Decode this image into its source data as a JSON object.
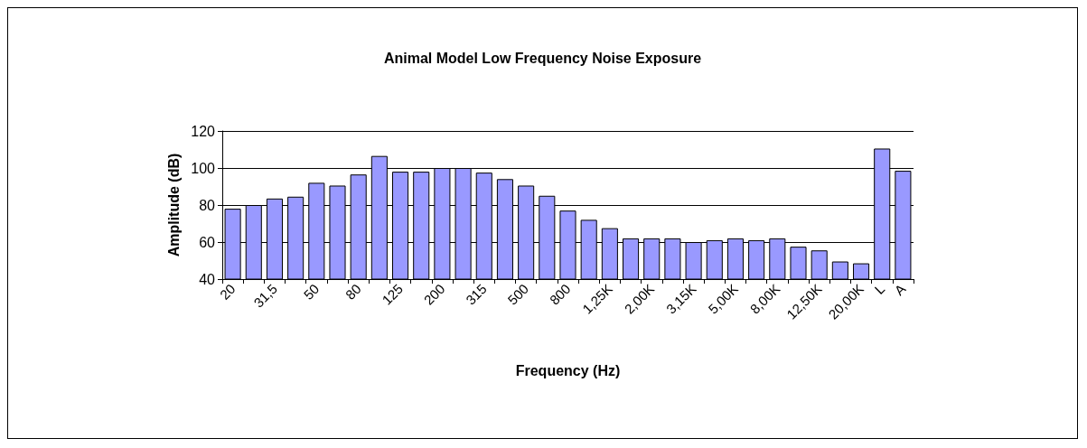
{
  "chart_data": {
    "type": "bar",
    "title": "Animal Model Low Frequency Noise Exposure",
    "xlabel": "Frequency (Hz)",
    "ylabel": "Amplitude (dB)",
    "categories": [
      "20",
      null,
      "31,5",
      null,
      "50",
      null,
      "80",
      null,
      "125",
      null,
      "200",
      null,
      "315",
      null,
      "500",
      null,
      "800",
      null,
      "1,25K",
      null,
      "2,00K",
      null,
      "3,15K",
      null,
      "5,00K",
      null,
      "8,00K",
      null,
      "12,50K",
      null,
      "20,00K",
      "L",
      "A"
    ],
    "values": [
      78,
      80,
      83.5,
      84.5,
      92,
      90.5,
      96.5,
      106.5,
      98,
      98,
      100,
      100,
      97.5,
      94,
      90.5,
      85,
      77,
      72,
      67.5,
      62,
      62,
      62,
      60,
      61,
      62,
      61,
      62,
      57.5,
      55.5,
      49.5,
      48.5,
      110.5,
      98.5
    ],
    "color": "#9999ff",
    "ylim": [
      40,
      120
    ],
    "yticks": [
      40,
      60,
      80,
      100,
      120
    ],
    "grid": "y"
  }
}
